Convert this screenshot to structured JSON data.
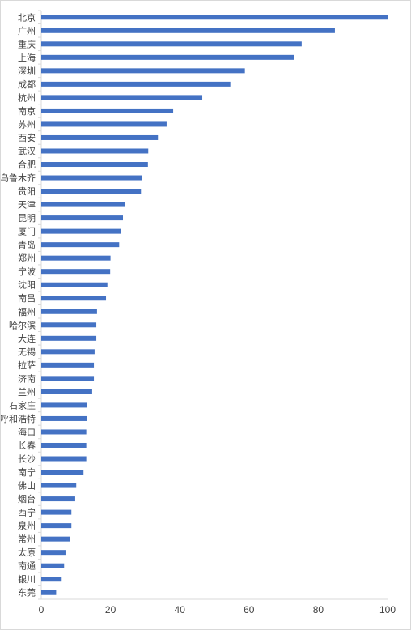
{
  "chart_data": {
    "type": "bar",
    "orientation": "horizontal",
    "title": "",
    "xlabel": "",
    "ylabel": "",
    "categories": [
      "北京",
      "广州",
      "重庆",
      "上海",
      "深圳",
      "成都",
      "杭州",
      "南京",
      "苏州",
      "西安",
      "武汉",
      "合肥",
      "乌鲁木齐",
      "贵阳",
      "天津",
      "昆明",
      "厦门",
      "青岛",
      "郑州",
      "宁波",
      "沈阳",
      "南昌",
      "福州",
      "哈尔滨",
      "大连",
      "无锡",
      "拉萨",
      "济南",
      "兰州",
      "石家庄",
      "呼和浩特",
      "海口",
      "长春",
      "长沙",
      "南宁",
      "佛山",
      "烟台",
      "西宁",
      "泉州",
      "常州",
      "太原",
      "南通",
      "银川",
      "东莞"
    ],
    "values": [
      100,
      84.8,
      75.2,
      73,
      58.8,
      54.6,
      46.5,
      38.1,
      36.2,
      33.7,
      30.9,
      30.8,
      29.2,
      28.8,
      24.3,
      23.6,
      23.0,
      22.5,
      20.0,
      19.9,
      19.1,
      18.7,
      16.1,
      15.9,
      15.9,
      15.4,
      15.2,
      15.2,
      14.7,
      13.1,
      13.1,
      13.0,
      13.0,
      13.0,
      12.2,
      10.1,
      9.8,
      8.7,
      8.7,
      8.2,
      7.0,
      6.6,
      5.9,
      4.3
    ],
    "xlim": [
      0,
      100
    ],
    "xticks": [
      "0",
      "20",
      "40",
      "60",
      "80",
      "100"
    ],
    "grid": false,
    "legend": "none",
    "bar_color": "#4472C4",
    "axis_color": "#d9d9d9"
  }
}
